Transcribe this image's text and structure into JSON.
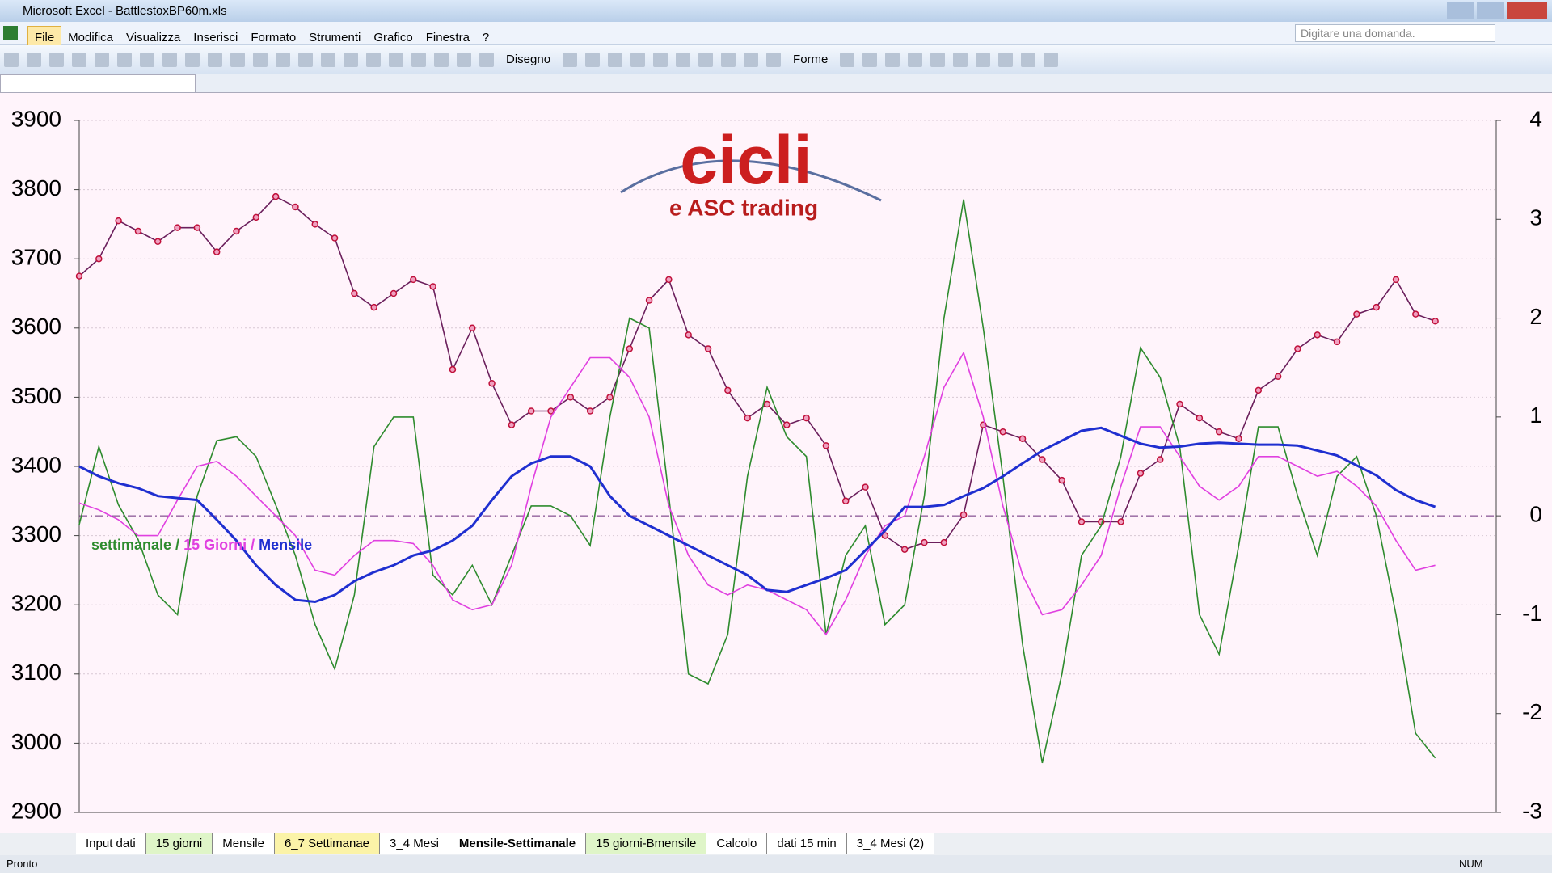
{
  "window": {
    "title": "Microsoft Excel - BattlestoxBP60m.xls",
    "menu": [
      "File",
      "Modifica",
      "Visualizza",
      "Inserisci",
      "Formato",
      "Strumenti",
      "Grafico",
      "Finestra",
      "?"
    ],
    "help_box": "Digitare una domanda.",
    "toolbar": [
      "Disegno",
      "Forme"
    ],
    "sheet_tabs": [
      "Input dati",
      "15 giorni",
      "Mensile",
      "6_7 Settimanae",
      "3_4 Mesi",
      "Mensile-Settimanale",
      "15 giorni-Bmensile",
      "Calcolo",
      "dati 15 min",
      "3_4 Mesi (2)"
    ],
    "active_tab": "Mensile-Settimanale",
    "status": "Pronto",
    "status_right": "NUM"
  },
  "chart_data": {
    "type": "line",
    "logo": {
      "title": "cicli",
      "subtitle": "e ASC trading"
    },
    "legend": "left",
    "legend_separator": "/",
    "grid": true,
    "zero_line": true,
    "zero_line_color": "#6a2a7a",
    "categories": [
      null,
      null,
      null,
      null,
      null,
      null,
      null,
      null,
      null,
      null,
      null,
      null,
      null,
      null,
      null,
      null,
      null,
      null,
      null,
      null,
      null,
      null,
      null,
      null,
      null,
      null,
      null,
      null,
      null,
      null,
      null,
      null,
      null,
      null,
      null,
      null,
      null,
      null,
      null,
      null,
      null,
      null,
      null,
      null,
      null,
      null,
      null,
      null,
      null,
      null,
      null,
      null,
      null,
      null,
      null,
      null,
      null,
      null,
      null,
      null,
      null,
      null,
      null,
      null,
      null,
      null,
      null,
      null,
      null,
      null
    ],
    "ylim": [
      2900,
      3900
    ],
    "yticks": [
      2900,
      3000,
      3100,
      3200,
      3300,
      3400,
      3500,
      3600,
      3700,
      3800,
      3900
    ],
    "y2lim": [
      -3,
      4
    ],
    "y2ticks": [
      -3,
      -2,
      -1,
      0,
      1,
      2,
      3,
      4
    ],
    "series": [
      {
        "color": "#6b1f5c",
        "marker_color": "#c0103a",
        "values": [
          3675,
          3700,
          3755,
          3740,
          3725,
          3745,
          3745,
          3710,
          3740,
          3760,
          3790,
          3775,
          3750,
          3730,
          3650,
          3630,
          3650,
          3670,
          3660,
          3540,
          3600,
          3520,
          3460,
          3480,
          3480,
          3500,
          3480,
          3500,
          3570,
          3640,
          3670,
          3590,
          3570,
          3510,
          3470,
          3490,
          3460,
          3470,
          3430,
          3350,
          3370,
          3300,
          3280,
          3290,
          3290,
          3330,
          3460,
          3450,
          3440,
          3410,
          3380,
          3320,
          3320,
          3320,
          3390,
          3410,
          3490,
          3470,
          3450,
          3440,
          3510,
          3530,
          3570,
          3590,
          3580,
          3620,
          3630,
          3670,
          3620,
          3610
        ]
      },
      {
        "name": "settimanale",
        "color": "#2e8b2e",
        "axis": "y2",
        "values": [
          -0.09,
          0.7,
          0.11,
          -0.24,
          -0.8,
          -1,
          0.2,
          0.76,
          0.8,
          0.6,
          0.11,
          -0.4,
          -1.1,
          -1.55,
          -0.8,
          0.7,
          1,
          1,
          -0.6,
          -0.8,
          -0.5,
          -0.9,
          -0.4,
          0.1,
          0.1,
          0,
          -0.3,
          1,
          2,
          1.9,
          0.2,
          -1.6,
          -1.7,
          -1.2,
          0.4,
          1.3,
          0.8,
          0.6,
          -1.2,
          -0.4,
          -0.1,
          -1.1,
          -0.9,
          0.2,
          2,
          3.2,
          1.9,
          0.4,
          -1.3,
          -2.5,
          -1.6,
          -0.4,
          -0.1,
          0.6,
          1.7,
          1.4,
          0.7,
          -1,
          -1.4,
          -0.3,
          0.9,
          0.9,
          0.2,
          -0.4,
          0.4,
          0.6,
          0,
          -1,
          -2.2,
          -2.45
        ]
      },
      {
        "name": "15 Giorni",
        "color": "#e040e0",
        "axis": "y2",
        "values": [
          0.13,
          0.06,
          -0.04,
          -0.2,
          -0.2,
          0.16,
          0.5,
          0.55,
          0.4,
          0.2,
          0,
          -0.2,
          -0.55,
          -0.6,
          -0.4,
          -0.25,
          -0.25,
          -0.28,
          -0.5,
          -0.85,
          -0.95,
          -0.9,
          -0.5,
          0.3,
          1,
          1.3,
          1.6,
          1.6,
          1.4,
          1,
          0.1,
          -0.4,
          -0.7,
          -0.8,
          -0.7,
          -0.75,
          -0.85,
          -0.95,
          -1.2,
          -0.85,
          -0.4,
          -0.1,
          0,
          0.6,
          1.3,
          1.65,
          1,
          0.1,
          -0.6,
          -1,
          -0.95,
          -0.7,
          -0.4,
          0.3,
          0.9,
          0.9,
          0.6,
          0.3,
          0.16,
          0.3,
          0.6,
          0.6,
          0.5,
          0.4,
          0.45,
          0.3,
          0.1,
          -0.25,
          -0.55,
          -0.5
        ]
      },
      {
        "name": "Mensile",
        "color": "#1f2fd0",
        "axis": "y2",
        "values": [
          0.5,
          0.4,
          0.33,
          0.28,
          0.2,
          0.18,
          0.16,
          -0.04,
          -0.25,
          -0.5,
          -0.7,
          -0.85,
          -0.87,
          -0.8,
          -0.66,
          -0.57,
          -0.5,
          -0.4,
          -0.35,
          -0.25,
          -0.1,
          0.16,
          0.4,
          0.53,
          0.6,
          0.6,
          0.5,
          0.2,
          0,
          -0.1,
          -0.2,
          -0.3,
          -0.4,
          -0.5,
          -0.6,
          -0.75,
          -0.77,
          -0.7,
          -0.63,
          -0.55,
          -0.35,
          -0.15,
          0.09,
          0.09,
          0.11,
          0.2,
          0.28,
          0.4,
          0.53,
          0.66,
          0.76,
          0.86,
          0.89,
          0.81,
          0.73,
          0.69,
          0.7,
          0.73,
          0.74,
          0.73,
          0.72,
          0.72,
          0.71,
          0.66,
          0.61,
          0.51,
          0.41,
          0.26,
          0.16,
          0.09
        ]
      }
    ]
  }
}
